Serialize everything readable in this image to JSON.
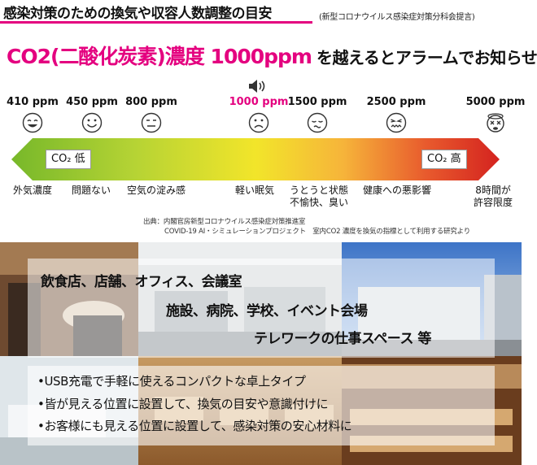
{
  "header": {
    "title": "感染対策のための換気や収容人数調整の目安",
    "note": "(新型コロナウイルス感染症対策分科会提言)"
  },
  "heading": {
    "pink": "CO2(二酸化炭素)濃度 1000ppm",
    "black": "を越えるとアラームでお知らせ"
  },
  "levels": [
    {
      "ppm": "410 ppm",
      "face": "happy-face-icon"
    },
    {
      "ppm": "450 ppm",
      "face": "smile-face-icon"
    },
    {
      "ppm": "800 ppm",
      "face": "neutral-face-icon"
    },
    {
      "ppm": "1000 ppm",
      "face": "frown-face-icon"
    },
    {
      "ppm": "1500 ppm",
      "face": "drowsy-face-icon"
    },
    {
      "ppm": "2500 ppm",
      "face": "sick-face-icon"
    },
    {
      "ppm": "5000 ppm",
      "face": "dizzy-face-icon"
    }
  ],
  "bar": {
    "low_label": "CO₂ 低",
    "high_label": "CO₂ 高",
    "colors": [
      "#77b82a",
      "#b5d334",
      "#f2e52a",
      "#f6b43a",
      "#e85a2d",
      "#d4231f"
    ]
  },
  "effects": [
    {
      "line1": "外気濃度",
      "line2": ""
    },
    {
      "line1": "問題ない",
      "line2": ""
    },
    {
      "line1": "空気の淀み感",
      "line2": ""
    },
    {
      "line1": "軽い眠気",
      "line2": ""
    },
    {
      "line1": "うとうと状態",
      "line2": "不愉快、臭い"
    },
    {
      "line1": "健康への悪影響",
      "line2": ""
    },
    {
      "line1": "8時間が",
      "line2": "許容限度"
    }
  ],
  "source": {
    "line1": "出典：内閣官房新型コロナウイルス感染症対策推進室",
    "line2": "COVID-19 AI・シミュレーションプロジェクト　室内CO2 濃度を換気の指標として利用する研究より"
  },
  "venues": [
    "飲食店、店舗、オフィス、会議室",
    "施設、病院、学校、イベント会場",
    "テレワークの仕事スペース 等"
  ],
  "bullets": [
    "•USB充電で手軽に使えるコンパクトな卓上タイプ",
    "•皆が見える位置に設置して、換気の目安や意識付けに",
    "•お客様にも見える位置に設置して、感染対策の安心材料に"
  ]
}
